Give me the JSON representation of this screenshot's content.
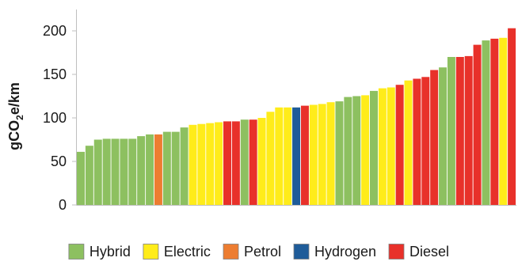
{
  "chart_data": {
    "type": "bar",
    "title": "",
    "xlabel": "",
    "ylabel": "gCO2e/km",
    "ylabel_main": "gCO",
    "ylabel_sub": "2",
    "ylabel_rest": "e/km",
    "ylim": [
      0,
      220
    ],
    "yticks": [
      0,
      50,
      100,
      150,
      200
    ],
    "grid": false,
    "legend_position": "bottom",
    "types": [
      {
        "key": "hybrid",
        "label": "Hybrid",
        "color": "#8dc060"
      },
      {
        "key": "electric",
        "label": "Electric",
        "color": "#ffec1a"
      },
      {
        "key": "petrol",
        "label": "Petrol",
        "color": "#ed7d31"
      },
      {
        "key": "hydrogen",
        "label": "Hydrogen",
        "color": "#1f5c99"
      },
      {
        "key": "diesel",
        "label": "Diesel",
        "color": "#e8312a"
      }
    ],
    "bars": [
      {
        "type": "hybrid",
        "value": 61
      },
      {
        "type": "hybrid",
        "value": 68
      },
      {
        "type": "hybrid",
        "value": 75
      },
      {
        "type": "hybrid",
        "value": 76
      },
      {
        "type": "hybrid",
        "value": 76
      },
      {
        "type": "hybrid",
        "value": 76
      },
      {
        "type": "hybrid",
        "value": 76
      },
      {
        "type": "hybrid",
        "value": 79
      },
      {
        "type": "hybrid",
        "value": 81
      },
      {
        "type": "petrol",
        "value": 81
      },
      {
        "type": "hybrid",
        "value": 84
      },
      {
        "type": "hybrid",
        "value": 84
      },
      {
        "type": "hybrid",
        "value": 89
      },
      {
        "type": "electric",
        "value": 92
      },
      {
        "type": "electric",
        "value": 93
      },
      {
        "type": "electric",
        "value": 94
      },
      {
        "type": "electric",
        "value": 95
      },
      {
        "type": "diesel",
        "value": 96
      },
      {
        "type": "diesel",
        "value": 96
      },
      {
        "type": "hybrid",
        "value": 98
      },
      {
        "type": "diesel",
        "value": 98
      },
      {
        "type": "electric",
        "value": 100
      },
      {
        "type": "electric",
        "value": 107
      },
      {
        "type": "electric",
        "value": 112
      },
      {
        "type": "electric",
        "value": 112
      },
      {
        "type": "hydrogen",
        "value": 112
      },
      {
        "type": "diesel",
        "value": 114
      },
      {
        "type": "electric",
        "value": 115
      },
      {
        "type": "electric",
        "value": 116
      },
      {
        "type": "electric",
        "value": 118
      },
      {
        "type": "hybrid",
        "value": 119
      },
      {
        "type": "hybrid",
        "value": 124
      },
      {
        "type": "hybrid",
        "value": 125
      },
      {
        "type": "electric",
        "value": 126
      },
      {
        "type": "hybrid",
        "value": 131
      },
      {
        "type": "electric",
        "value": 134
      },
      {
        "type": "electric",
        "value": 135
      },
      {
        "type": "diesel",
        "value": 138
      },
      {
        "type": "electric",
        "value": 143
      },
      {
        "type": "diesel",
        "value": 145
      },
      {
        "type": "diesel",
        "value": 147
      },
      {
        "type": "diesel",
        "value": 155
      },
      {
        "type": "hybrid",
        "value": 158
      },
      {
        "type": "hybrid",
        "value": 170
      },
      {
        "type": "diesel",
        "value": 170
      },
      {
        "type": "diesel",
        "value": 171
      },
      {
        "type": "diesel",
        "value": 184
      },
      {
        "type": "hybrid",
        "value": 189
      },
      {
        "type": "diesel",
        "value": 191
      },
      {
        "type": "electric",
        "value": 192
      },
      {
        "type": "diesel",
        "value": 203
      }
    ]
  }
}
